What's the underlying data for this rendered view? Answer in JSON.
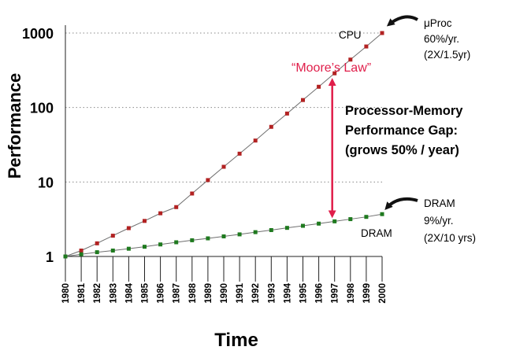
{
  "chart_data": {
    "type": "line",
    "scale_y": "log",
    "ylim": [
      1,
      1000
    ],
    "xlim": [
      1980,
      2000
    ],
    "ylabel": "Performance",
    "xlabel": "Time",
    "y_ticks": [
      {
        "value": 1,
        "label": "1"
      },
      {
        "value": 10,
        "label": "10"
      },
      {
        "value": 100,
        "label": "100"
      },
      {
        "value": 1000,
        "label": "1000"
      }
    ],
    "x_ticks": [
      "1980",
      "1981",
      "1982",
      "1983",
      "1984",
      "1985",
      "1986",
      "1987",
      "1988",
      "1989",
      "1990",
      "1991",
      "1992",
      "1993",
      "1994",
      "1995",
      "1996",
      "1997",
      "1998",
      "1999",
      "2000"
    ],
    "grid": "dotted horizontal",
    "series": [
      {
        "name": "CPU",
        "color": "#b22222",
        "x": [
          1980,
          1981,
          1982,
          1983,
          1984,
          1985,
          1986,
          1987,
          1988,
          1989,
          1990,
          1991,
          1992,
          1993,
          1994,
          1995,
          1996,
          1997,
          1998,
          1999,
          2000
        ],
        "values": [
          1,
          1.2,
          1.5,
          1.9,
          2.4,
          3.0,
          3.8,
          4.6,
          7.0,
          10.6,
          16,
          24,
          36,
          55,
          83,
          126,
          190,
          288,
          440,
          660,
          1000
        ]
      },
      {
        "name": "DRAM",
        "color": "#1f7a1f",
        "x": [
          1980,
          1981,
          1982,
          1983,
          1984,
          1985,
          1986,
          1987,
          1988,
          1989,
          1990,
          1991,
          1992,
          1993,
          1994,
          1995,
          1996,
          1997,
          1998,
          1999,
          2000
        ],
        "values": [
          1,
          1.07,
          1.14,
          1.2,
          1.27,
          1.35,
          1.45,
          1.55,
          1.65,
          1.75,
          1.86,
          1.98,
          2.12,
          2.26,
          2.42,
          2.58,
          2.76,
          2.96,
          3.17,
          3.4,
          3.7
        ]
      }
    ],
    "labels": {
      "cpu_line": "CPU",
      "dram_line": "DRAM",
      "moore": "“Moore’s Law”",
      "gap_lines": [
        "Processor-Memory",
        "Performance Gap:",
        "(grows 50% / year)"
      ],
      "cpu_note_lines": [
        "μProc",
        "60%/yr.",
        "(2X/1.5yr)"
      ],
      "dram_note_lines": [
        "DRAM",
        "9%/yr.",
        "(2X/10 yrs)"
      ]
    },
    "gap_arrow_year": 1997
  }
}
